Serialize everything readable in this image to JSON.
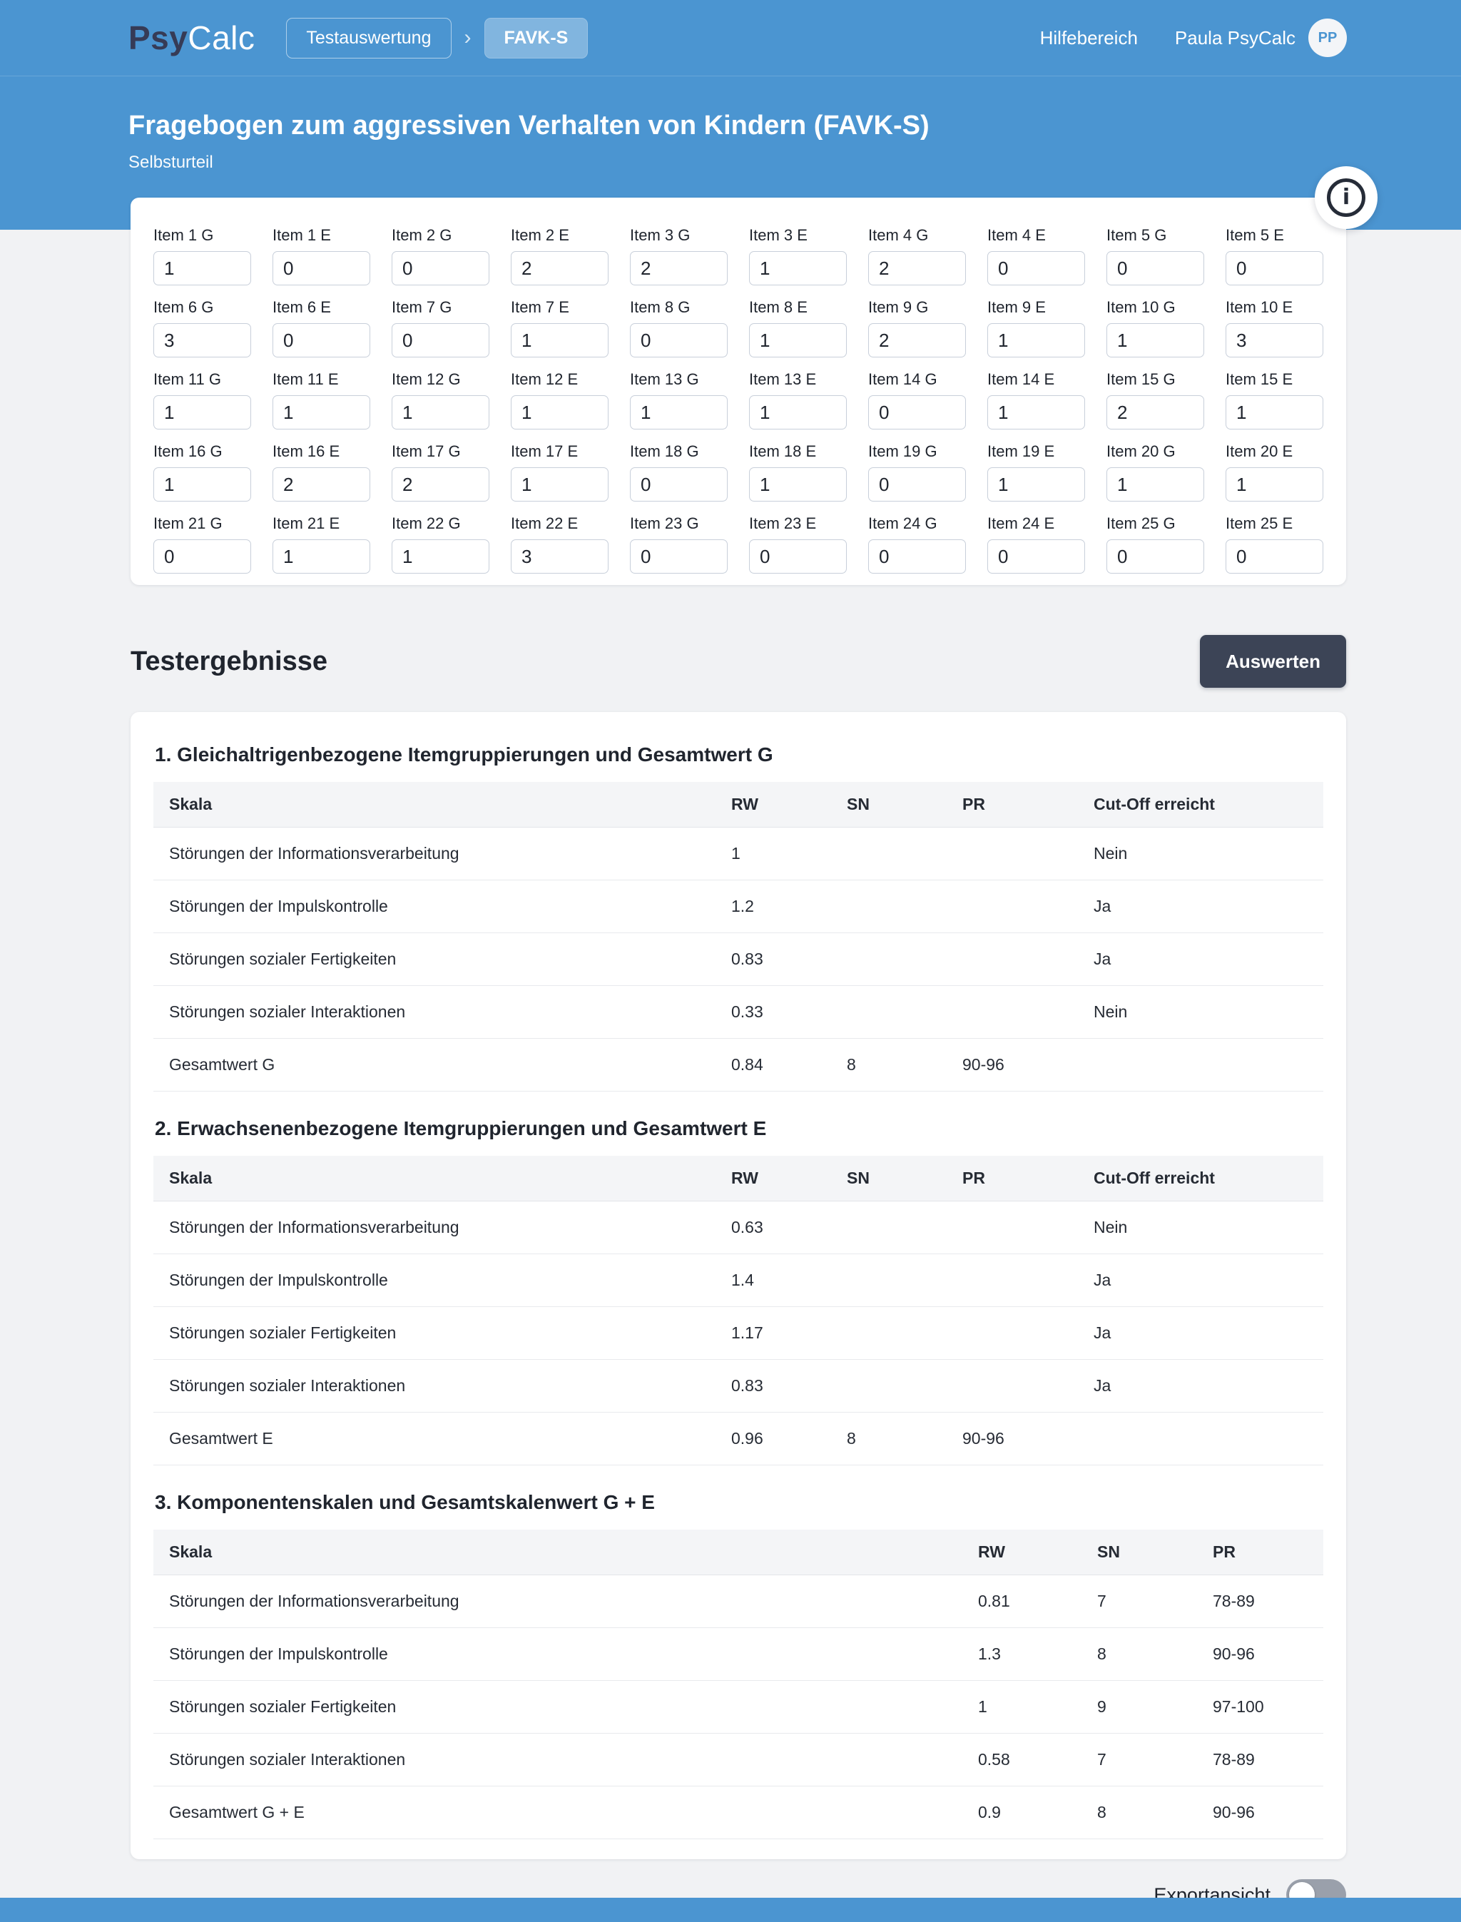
{
  "header": {
    "logo_part1": "Psy",
    "logo_part2": "Calc",
    "breadcrumb_1": "Testauswertung",
    "breadcrumb_separator": "›",
    "breadcrumb_2": "FAVK-S",
    "help_label": "Hilfebereich",
    "user_label": "Paula PsyCalc",
    "avatar_initials": "PP"
  },
  "hero": {
    "title": "Fragebogen zum aggressiven Verhalten von Kindern (FAVK-S)",
    "subtitle": "Selbsturteil"
  },
  "items": [
    {
      "label": "Item 1 G",
      "value": "1"
    },
    {
      "label": "Item 1 E",
      "value": "0"
    },
    {
      "label": "Item 2 G",
      "value": "0"
    },
    {
      "label": "Item 2 E",
      "value": "2"
    },
    {
      "label": "Item 3 G",
      "value": "2"
    },
    {
      "label": "Item 3 E",
      "value": "1"
    },
    {
      "label": "Item 4 G",
      "value": "2"
    },
    {
      "label": "Item 4 E",
      "value": "0"
    },
    {
      "label": "Item 5 G",
      "value": "0"
    },
    {
      "label": "Item 5 E",
      "value": "0"
    },
    {
      "label": "Item 6 G",
      "value": "3"
    },
    {
      "label": "Item 6 E",
      "value": "0"
    },
    {
      "label": "Item 7 G",
      "value": "0"
    },
    {
      "label": "Item 7 E",
      "value": "1"
    },
    {
      "label": "Item 8 G",
      "value": "0"
    },
    {
      "label": "Item 8 E",
      "value": "1"
    },
    {
      "label": "Item 9 G",
      "value": "2"
    },
    {
      "label": "Item 9 E",
      "value": "1"
    },
    {
      "label": "Item 10 G",
      "value": "1"
    },
    {
      "label": "Item 10 E",
      "value": "3"
    },
    {
      "label": "Item 11 G",
      "value": "1"
    },
    {
      "label": "Item 11 E",
      "value": "1"
    },
    {
      "label": "Item 12 G",
      "value": "1"
    },
    {
      "label": "Item 12 E",
      "value": "1"
    },
    {
      "label": "Item 13 G",
      "value": "1"
    },
    {
      "label": "Item 13 E",
      "value": "1"
    },
    {
      "label": "Item 14 G",
      "value": "0"
    },
    {
      "label": "Item 14 E",
      "value": "1"
    },
    {
      "label": "Item 15 G",
      "value": "2"
    },
    {
      "label": "Item 15 E",
      "value": "1"
    },
    {
      "label": "Item 16 G",
      "value": "1"
    },
    {
      "label": "Item 16 E",
      "value": "2"
    },
    {
      "label": "Item 17 G",
      "value": "2"
    },
    {
      "label": "Item 17 E",
      "value": "1"
    },
    {
      "label": "Item 18 G",
      "value": "0"
    },
    {
      "label": "Item 18 E",
      "value": "1"
    },
    {
      "label": "Item 19 G",
      "value": "0"
    },
    {
      "label": "Item 19 E",
      "value": "1"
    },
    {
      "label": "Item 20 G",
      "value": "1"
    },
    {
      "label": "Item 20 E",
      "value": "1"
    },
    {
      "label": "Item 21 G",
      "value": "0"
    },
    {
      "label": "Item 21 E",
      "value": "1"
    },
    {
      "label": "Item 22 G",
      "value": "1"
    },
    {
      "label": "Item 22 E",
      "value": "3"
    },
    {
      "label": "Item 23 G",
      "value": "0"
    },
    {
      "label": "Item 23 E",
      "value": "0"
    },
    {
      "label": "Item 24 G",
      "value": "0"
    },
    {
      "label": "Item 24 E",
      "value": "0"
    },
    {
      "label": "Item 25 G",
      "value": "0"
    },
    {
      "label": "Item 25 E",
      "value": "0"
    }
  ],
  "results": {
    "heading": "Testergebnisse",
    "evaluate_button": "Auswerten",
    "sections": [
      {
        "title": "1. Gleichaltrigenbezogene Itemgruppierungen und Gesamtwert G",
        "columns": [
          "Skala",
          "RW",
          "SN",
          "PR",
          "Cut-Off erreicht"
        ],
        "rows": [
          [
            "Störungen der Informationsverarbeitung",
            "1",
            "",
            "",
            "Nein"
          ],
          [
            "Störungen der Impulskontrolle",
            "1.2",
            "",
            "",
            "Ja"
          ],
          [
            "Störungen sozialer Fertigkeiten",
            "0.83",
            "",
            "",
            "Ja"
          ],
          [
            "Störungen sozialer Interaktionen",
            "0.33",
            "",
            "",
            "Nein"
          ],
          [
            "Gesamtwert G",
            "0.84",
            "8",
            "90-96",
            ""
          ]
        ]
      },
      {
        "title": "2. Erwachsenenbezogene Itemgruppierungen und Gesamtwert E",
        "columns": [
          "Skala",
          "RW",
          "SN",
          "PR",
          "Cut-Off erreicht"
        ],
        "rows": [
          [
            "Störungen der Informationsverarbeitung",
            "0.63",
            "",
            "",
            "Nein"
          ],
          [
            "Störungen der Impulskontrolle",
            "1.4",
            "",
            "",
            "Ja"
          ],
          [
            "Störungen sozialer Fertigkeiten",
            "1.17",
            "",
            "",
            "Ja"
          ],
          [
            "Störungen sozialer Interaktionen",
            "0.83",
            "",
            "",
            "Ja"
          ],
          [
            "Gesamtwert E",
            "0.96",
            "8",
            "90-96",
            ""
          ]
        ]
      },
      {
        "title": "3. Komponentenskalen und Gesamtskalenwert G + E",
        "columns": [
          "Skala",
          "RW",
          "SN",
          "PR"
        ],
        "rows": [
          [
            "Störungen der Informationsverarbeitung",
            "0.81",
            "7",
            "78-89"
          ],
          [
            "Störungen der Impulskontrolle",
            "1.3",
            "8",
            "90-96"
          ],
          [
            "Störungen sozialer Fertigkeiten",
            "1",
            "9",
            "97-100"
          ],
          [
            "Störungen sozialer Interaktionen",
            "0.58",
            "7",
            "78-89"
          ],
          [
            "Gesamtwert G + E",
            "0.9",
            "8",
            "90-96"
          ]
        ]
      }
    ]
  },
  "footer": {
    "export_label": "Exportansicht",
    "export_on": false
  },
  "colors": {
    "accent": "#4b95d1",
    "dark": "#3c4456",
    "page_bg": "#f1f2f4",
    "text": "#22272f"
  }
}
